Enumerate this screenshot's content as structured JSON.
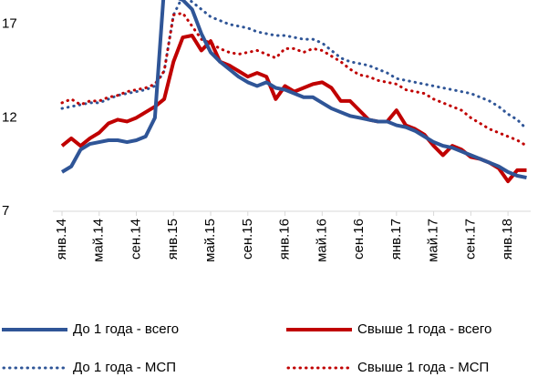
{
  "chart_data": {
    "type": "line",
    "categories": [
      "янв.14",
      null,
      null,
      null,
      "май.14",
      null,
      null,
      null,
      "сен.14",
      null,
      null,
      null,
      "янв.15",
      null,
      null,
      null,
      "май.15",
      null,
      null,
      null,
      "сен.15",
      null,
      null,
      null,
      "янв.16",
      null,
      null,
      null,
      "май.16",
      null,
      null,
      null,
      "сен.16",
      null,
      null,
      null,
      "янв.17",
      null,
      null,
      null,
      "май.17",
      null,
      null,
      null,
      "сен.17",
      null,
      null,
      null,
      "янв.18",
      null,
      null
    ],
    "series": [
      {
        "name": "До 1 года - всего",
        "color": "#2f5597",
        "style": "solid",
        "values": [
          9.1,
          9.4,
          10.3,
          10.6,
          10.7,
          10.8,
          10.8,
          10.7,
          10.8,
          11.0,
          12.0,
          19.0,
          18.5,
          18.3,
          17.8,
          16.5,
          15.5,
          15.0,
          14.6,
          14.2,
          13.9,
          13.7,
          13.9,
          13.6,
          13.5,
          13.3,
          13.1,
          13.1,
          12.8,
          12.5,
          12.3,
          12.1,
          12.0,
          11.9,
          11.8,
          11.8,
          11.6,
          11.5,
          11.3,
          11.0,
          10.7,
          10.5,
          10.4,
          10.2,
          10.0,
          9.8,
          9.6,
          9.4,
          9.1,
          8.9,
          8.8
        ]
      },
      {
        "name": "Свыше 1 года - всего",
        "color": "#c00000",
        "style": "solid",
        "values": [
          10.5,
          10.9,
          10.5,
          10.9,
          11.2,
          11.7,
          11.9,
          11.8,
          12.0,
          12.3,
          12.6,
          13.0,
          15.0,
          16.3,
          16.4,
          15.6,
          16.1,
          15.0,
          14.8,
          14.5,
          14.2,
          14.4,
          14.2,
          13.0,
          13.7,
          13.4,
          13.6,
          13.8,
          13.9,
          13.6,
          12.9,
          12.9,
          12.4,
          11.9,
          11.8,
          11.8,
          12.4,
          11.6,
          11.4,
          11.1,
          10.5,
          10.0,
          10.5,
          10.3,
          9.9,
          9.8,
          9.6,
          9.3,
          8.6,
          9.2,
          9.2
        ]
      },
      {
        "name": "До 1 года - МСП",
        "color": "#2f5597",
        "style": "dotted",
        "values": [
          12.5,
          12.6,
          12.7,
          12.8,
          12.8,
          13.0,
          13.2,
          13.3,
          13.4,
          13.5,
          13.7,
          14.5,
          17.5,
          18.5,
          18.2,
          17.8,
          17.4,
          17.2,
          17.0,
          16.9,
          16.8,
          16.6,
          16.5,
          16.4,
          16.4,
          16.3,
          16.2,
          16.2,
          16.0,
          15.6,
          15.2,
          15.0,
          14.9,
          14.8,
          14.6,
          14.4,
          14.1,
          14.0,
          13.9,
          13.8,
          13.7,
          13.6,
          13.5,
          13.4,
          13.3,
          13.1,
          12.9,
          12.6,
          12.2,
          11.9,
          11.4
        ]
      },
      {
        "name": "Свыше 1 года - МСП",
        "color": "#c00000",
        "style": "dotted",
        "values": [
          12.8,
          13.0,
          12.7,
          12.9,
          12.9,
          13.1,
          13.2,
          13.4,
          13.5,
          13.6,
          13.8,
          14.5,
          17.5,
          17.6,
          16.9,
          16.2,
          16.0,
          15.7,
          15.5,
          15.4,
          15.5,
          15.6,
          15.4,
          15.2,
          15.7,
          15.7,
          15.5,
          15.7,
          15.6,
          15.3,
          15.0,
          14.6,
          14.3,
          14.2,
          14.0,
          13.9,
          13.8,
          13.5,
          13.4,
          13.3,
          13.0,
          12.8,
          12.6,
          12.4,
          12.0,
          11.7,
          11.4,
          11.2,
          11.0,
          10.8,
          10.5
        ]
      }
    ],
    "ylim": [
      7,
      18.3
    ],
    "yticks": [
      7,
      12,
      17
    ],
    "grid": false
  }
}
